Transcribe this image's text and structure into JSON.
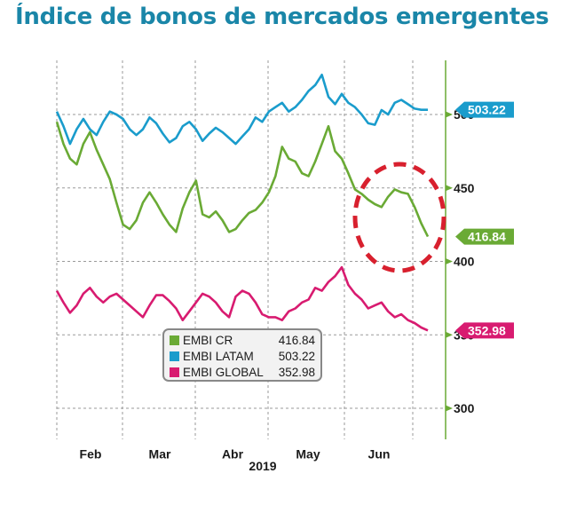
{
  "title": "Índice de bonos de mercados emergentes",
  "chart_data": {
    "type": "line",
    "title": "Índice de bonos de mercados emergentes",
    "xlabel": "2019",
    "ylabel": "",
    "x_tick_labels": [
      "Feb",
      "Mar",
      "Abr",
      "May",
      "Jun"
    ],
    "y_ticks": [
      300,
      350,
      400,
      450,
      500
    ],
    "ylim": [
      278,
      540
    ],
    "grid": true,
    "y_axis_side": "right",
    "x_note": "values sampled at roughly even intervals from late January to late June 2019",
    "series": [
      {
        "name": "EMBI CR",
        "color": "#6aaa35",
        "last_value": 416.84,
        "values": [
          495,
          480,
          470,
          466,
          480,
          488,
          476,
          466,
          456,
          440,
          425,
          422,
          428,
          440,
          447,
          440,
          432,
          425,
          420,
          436,
          447,
          455,
          432,
          430,
          434,
          428,
          420,
          422,
          428,
          433,
          435,
          440,
          447,
          458,
          478,
          470,
          468,
          460,
          458,
          468,
          480,
          492,
          475,
          470,
          460,
          449,
          446,
          442,
          439,
          437,
          444,
          449,
          447,
          446,
          437,
          426,
          416.84
        ]
      },
      {
        "name": "EMBI LATAM",
        "color": "#1a9ccc",
        "last_value": 503.22,
        "values": [
          502,
          492,
          480,
          490,
          497,
          490,
          486,
          495,
          502,
          500,
          497,
          490,
          486,
          490,
          498,
          494,
          487,
          481,
          484,
          492,
          495,
          490,
          482,
          487,
          491,
          488,
          484,
          480,
          485,
          490,
          498,
          495,
          502,
          505,
          508,
          502,
          505,
          510,
          516,
          520,
          527,
          512,
          507,
          514,
          508,
          505,
          500,
          494,
          493,
          503,
          500,
          508,
          510,
          507,
          504,
          503.22,
          503.22
        ]
      },
      {
        "name": "EMBI GLOBAL",
        "color": "#d81b70",
        "last_value": 352.98,
        "values": [
          380,
          372,
          365,
          370,
          378,
          382,
          376,
          372,
          376,
          378,
          374,
          370,
          366,
          362,
          370,
          377,
          377,
          373,
          368,
          360,
          366,
          372,
          378,
          376,
          372,
          366,
          362,
          376,
          380,
          378,
          372,
          364,
          362,
          362,
          360,
          366,
          368,
          372,
          374,
          382,
          380,
          386,
          390,
          396,
          384,
          378,
          374,
          368,
          370,
          372,
          366,
          362,
          364,
          360,
          358,
          355,
          352.98
        ]
      }
    ],
    "value_badges": [
      {
        "series": "EMBI LATAM",
        "value": "503.22"
      },
      {
        "series": "EMBI CR",
        "value": "416.84"
      },
      {
        "series": "EMBI GLOBAL",
        "value": "352.98"
      }
    ],
    "annotation": "red dashed circle highlighting recent EMBI CR decline",
    "legend": {
      "placement": "bottom-center",
      "entries": [
        {
          "label": "EMBI CR",
          "value": "416.84",
          "color": "#6aaa35"
        },
        {
          "label": "EMBI LATAM",
          "value": "503.22",
          "color": "#1a9ccc"
        },
        {
          "label": "EMBI GLOBAL",
          "value": "352.98",
          "color": "#d81b70"
        }
      ]
    }
  },
  "colors": {
    "title": "#1a86a8",
    "axis": "#6aaa35",
    "grid": "#9a9a9a",
    "annotation": "#d8202e"
  }
}
